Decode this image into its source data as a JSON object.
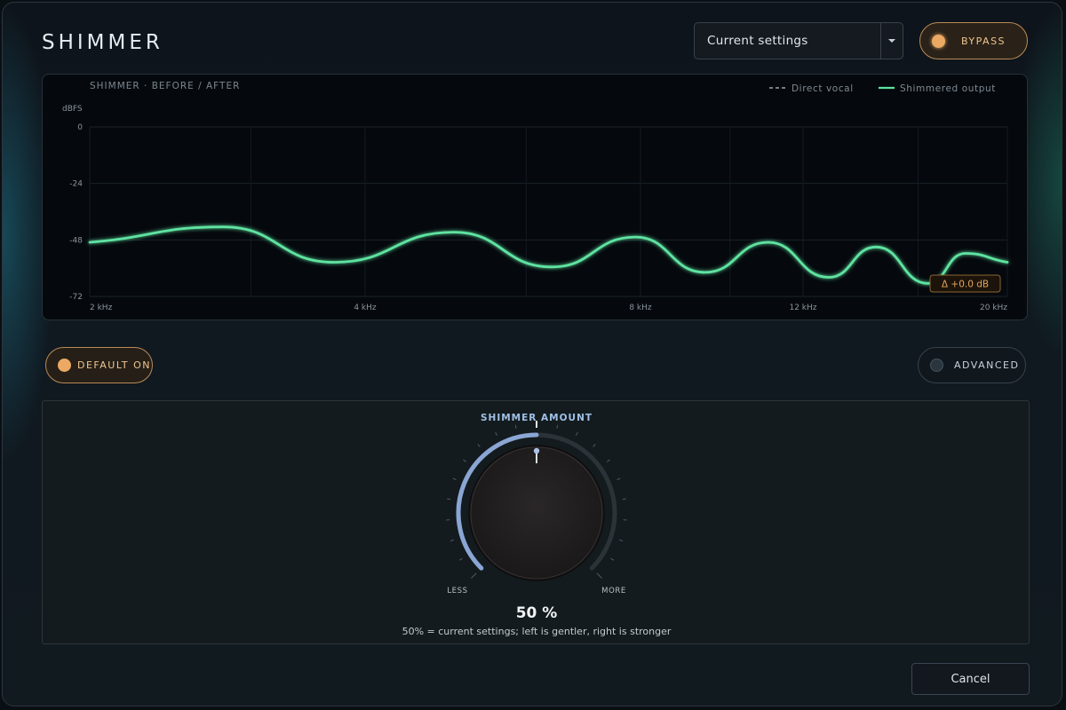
{
  "app": {
    "title": "SHIMMER"
  },
  "preset": {
    "value": "Current settings"
  },
  "bypass": {
    "label": "BYPASS"
  },
  "chart": {
    "title": "SHIMMER · BEFORE / AFTER",
    "legend": {
      "direct": "Direct vocal",
      "shimmered": "Shimmered output"
    },
    "delta_badge": "Δ  +0.0 dB",
    "colors": {
      "shimmered": "#5ee3a1",
      "direct": "#9aa4ae",
      "badge": "#e2a55e"
    }
  },
  "chart_data": {
    "type": "line",
    "ylabel": "dBFS",
    "y_ticks": [
      "0",
      "-24",
      "-48",
      "-72"
    ],
    "ylim": [
      -72,
      0
    ],
    "x_ticks": [
      "2 kHz",
      "4 kHz",
      "8 kHz",
      "12 kHz",
      "20 kHz"
    ],
    "grid": true,
    "legend_position": "top-right",
    "series": [
      {
        "name": "Shimmered output",
        "x_hz": [
          2000,
          2800,
          3700,
          5000,
          6400,
          7900,
          9400,
          11000,
          12800,
          14400,
          16400,
          18000,
          20000
        ],
        "y_db": [
          -49,
          -42.5,
          -57.5,
          -44.7,
          -59.5,
          -46.8,
          -61.8,
          -49,
          -63.9,
          -51,
          -66.5,
          -53.7,
          -57.5
        ]
      }
    ]
  },
  "toggles": {
    "default_on": "DEFAULT ON",
    "advanced": "ADVANCED"
  },
  "knob": {
    "title": "SHIMMER AMOUNT",
    "value_percent": 50,
    "value_text": "50 %",
    "min_label": "LESS",
    "max_label": "MORE",
    "hint": "50% = current settings; left is gentler, right is stronger"
  },
  "footer": {
    "cancel_label": "Cancel"
  }
}
